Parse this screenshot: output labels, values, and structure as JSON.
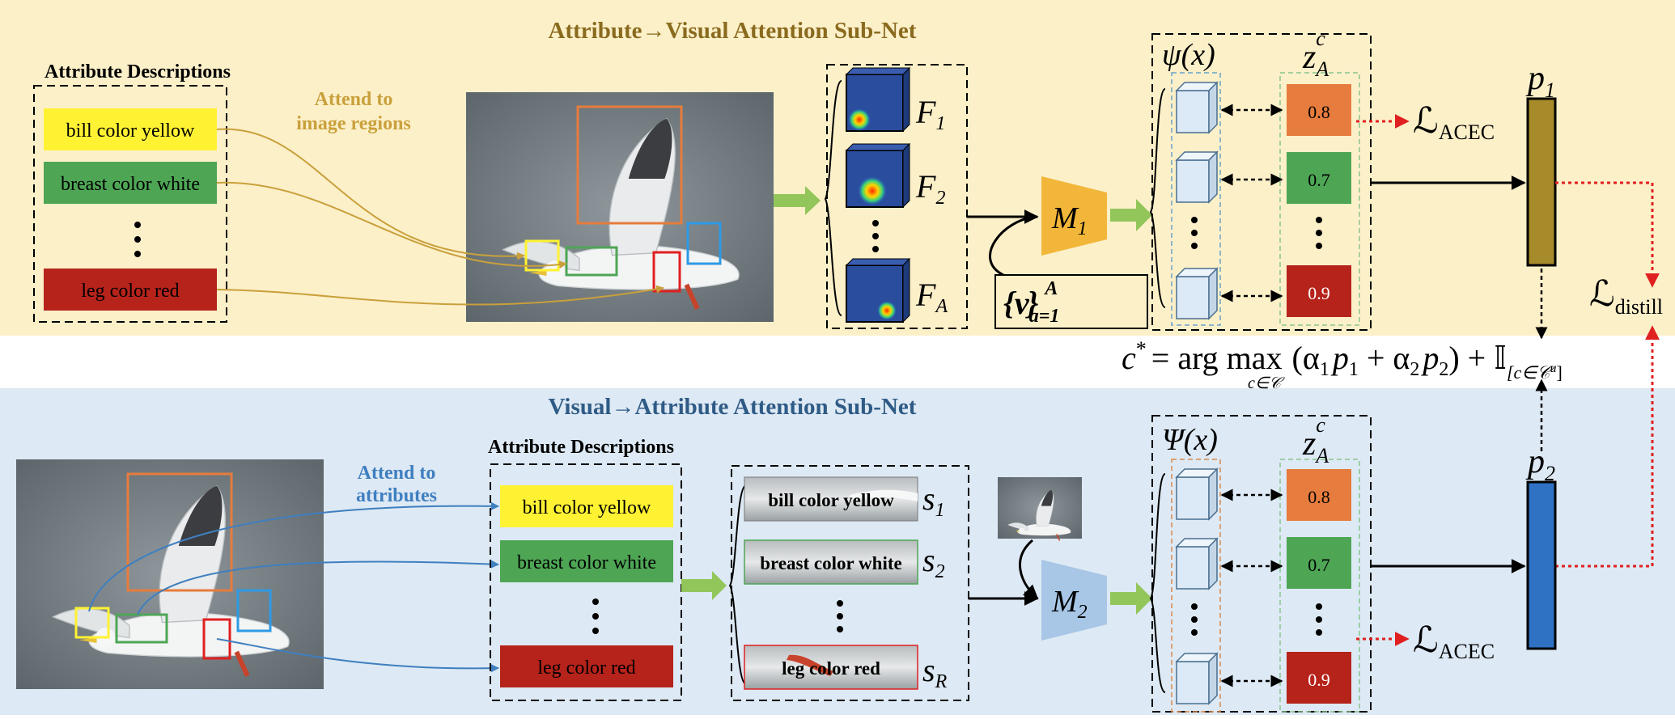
{
  "top": {
    "title": "Attribute→Visual Attention Sub-Net",
    "desc_header": "Attribute Descriptions",
    "attributes": [
      "bill color yellow",
      "breast color white",
      "leg color red"
    ],
    "attend_label": [
      "Attend to",
      "image regions"
    ],
    "feature_symbols": [
      "F",
      "F",
      "F"
    ],
    "feature_subs": [
      "1",
      "2",
      "A"
    ],
    "module": "M",
    "module_sub": "1",
    "prototype": {
      "body": "{v",
      "close": "}",
      "sup": "A",
      "sub": "a=1"
    },
    "psi": "ψ(x)",
    "z_base": "z",
    "z_sup": "c",
    "z_sub": "A",
    "scores": [
      "0.8",
      "0.7",
      "0.9"
    ],
    "loss_base": "ℒ",
    "loss_sub": "ACEC",
    "p_base": "p",
    "p_sub": "1"
  },
  "bottom": {
    "title": "Visual→Attribute Attention Sub-Net",
    "desc_header": "Attribute Descriptions",
    "attributes": [
      "bill color yellow",
      "breast color white",
      "leg color red"
    ],
    "attend_label": [
      "Attend to",
      "attributes"
    ],
    "strip_labels": [
      "bill color yellow",
      "breast color white",
      "leg color red"
    ],
    "s_base": "s",
    "s_subs": [
      "1",
      "2",
      "R"
    ],
    "module": "M",
    "module_sub": "2",
    "psi": "Ψ(x)",
    "z_base": "z",
    "z_sup": "c",
    "z_sub": "A",
    "scores": [
      "0.8",
      "0.7",
      "0.9"
    ],
    "loss_base": "ℒ",
    "loss_sub": "ACEC",
    "p_base": "p",
    "p_sub": "2"
  },
  "distill": {
    "base": "ℒ",
    "sub": "distill"
  },
  "equation": {
    "lhs": "c",
    "lhs_sup": "*",
    "op": "= arg max",
    "under": "c∈𝒞",
    "body": "(α",
    "a1": "1",
    "mid": "p",
    "p1": "1",
    "plus": " + α",
    "a2": "2",
    "p": "p",
    "p2": "2",
    "close": ") + 𝕀",
    "ind_sub": "[c∈𝒞",
    "ind_sup": "u",
    "ind_close": "]"
  },
  "colors": {
    "top_bg": "#fcf0c9",
    "bottom_bg": "#dde9f4",
    "top_title": "#8a6a1e",
    "bottom_title": "#2f5b86",
    "yellow": "#fff233",
    "green": "#4ea655",
    "red": "#b6231b",
    "orange": "#e67c3d",
    "m1": "#f2b73a",
    "m2": "#a8c6e6",
    "p1": "#a78a2a",
    "p2": "#2f72c4",
    "arrow_green": "#93c65a",
    "gold_line": "#c9a03b",
    "blue_line": "#3f7fc0",
    "loss_dot": "#e02020"
  }
}
